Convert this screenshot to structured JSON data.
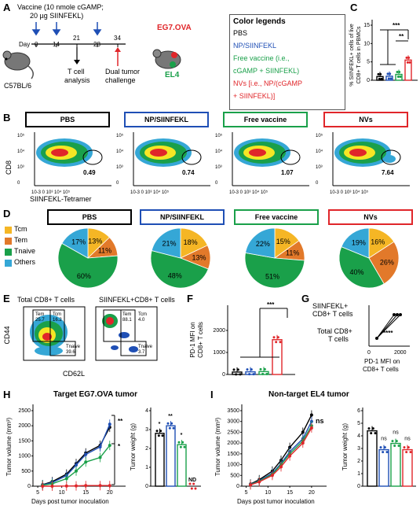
{
  "panelA": {
    "letter": "A",
    "vaccine_line1": "Vaccine (10 nmole cGAMP;",
    "vaccine_line2": "20 µg SIINFEKL)",
    "mouse": "C57BL/6",
    "day_label": "Day",
    "days": [
      "0",
      "14",
      "21",
      "28",
      "34"
    ],
    "tcell1": "T cell",
    "tcell2": "analysis",
    "dual1": "Dual tumor",
    "dual2": "challenge",
    "tumor1": "EG7.OVA",
    "tumor2": "EL4",
    "legend_title": "Color legends",
    "legend": [
      {
        "text": "PBS",
        "color": "#000000"
      },
      {
        "text": "NP/SIINFEKL",
        "color": "#1f4fb5"
      },
      {
        "text": "Free vaccine (i.e.,",
        "color": "#1aa04a"
      },
      {
        "text": "cGAMP + SIINFEKL)",
        "color": "#1aa04a"
      },
      {
        "text": "NVs [i.e., NP/(cGAMP",
        "color": "#e0262a"
      },
      {
        "text": "+ SIINFEKL)]",
        "color": "#e0262a"
      }
    ]
  },
  "panelC": {
    "letter": "C",
    "ylabel1": "% SIINFEKL+ cells of live",
    "ylabel2": "CD8+ T cells in PBMCs",
    "yticks": [
      "0",
      "5",
      "10",
      "15"
    ],
    "sig1": "***",
    "sig2": "**"
  },
  "panelB": {
    "letter": "B",
    "groups": [
      {
        "name": "PBS",
        "color": "#000000",
        "pct": "0.49"
      },
      {
        "name": "NP/SIINFEKL",
        "color": "#1f4fb5",
        "pct": "0.74"
      },
      {
        "name": "Free vaccine",
        "color": "#1aa04a",
        "pct": "1.07"
      },
      {
        "name": "NVs",
        "color": "#e0262a",
        "pct": "7.64"
      }
    ],
    "ylabel": "CD8",
    "xlabel": "SIINFEKL-Tetramer",
    "xticks": "10-3 0 10³ 10⁴ 10⁵",
    "yticks": [
      "10⁵",
      "10⁴",
      "10³",
      "0"
    ]
  },
  "panelD": {
    "letter": "D",
    "legend": [
      {
        "name": "Tcm",
        "color": "#f5b625"
      },
      {
        "name": "Tem",
        "color": "#e2792a"
      },
      {
        "name": "Tnaive",
        "color": "#1aa04a"
      },
      {
        "name": "Others",
        "color": "#35a7d6"
      }
    ],
    "pies": [
      {
        "title": "PBS",
        "border": "#000000",
        "values": [
          13,
          11,
          60,
          17
        ],
        "labels": [
          "13%",
          "11%",
          "60%",
          "17%"
        ]
      },
      {
        "title": "NP/SIINFEKL",
        "border": "#1f4fb5",
        "values": [
          18,
          13,
          48,
          21
        ],
        "labels": [
          "18%",
          "13%",
          "48%",
          "21%"
        ]
      },
      {
        "title": "Free vaccine",
        "border": "#1aa04a",
        "values": [
          15,
          11,
          51,
          22
        ],
        "labels": [
          "15%",
          "11%",
          "51%",
          "22%"
        ]
      },
      {
        "title": "NVs",
        "border": "#e0262a",
        "values": [
          16,
          26,
          40,
          19
        ],
        "labels": [
          "16%",
          "26%",
          "40%",
          "19%"
        ]
      }
    ]
  },
  "panelE": {
    "letter": "E",
    "title1": "Total CD8+ T cells",
    "title2": "SIINFEKL+CD8+ T cells",
    "ylabel": "CD44",
    "xlabel": "CD62L",
    "q1": {
      "tem": "Tem",
      "tem_v": "25.7",
      "tcm": "Tcm",
      "tcm_v": "16.2",
      "tn": "Tnaive",
      "tn_v": "39.6"
    },
    "q2": {
      "tem": "Tem",
      "tem_v": "88.1",
      "tcm": "Tcm",
      "tcm_v": "4.0",
      "tn": "Tnaive",
      "tn_v": "3.7"
    }
  },
  "panelF": {
    "letter": "F",
    "ylabel1": "PD-1 MFI on",
    "ylabel2": "CD8+ T cells",
    "yticks": [
      "0",
      "1000",
      "2000"
    ],
    "sig": "***"
  },
  "panelG": {
    "letter": "G",
    "label1a": "SIINFEKL+",
    "label1b": "CD8+ T cells",
    "label2a": "Total CD8+",
    "label2b": "T cells",
    "sig": "****",
    "xticks": [
      "0",
      "2000"
    ],
    "xlabel1": "PD-1 MFI on",
    "xlabel2": "CD8+ T cells"
  },
  "panelH": {
    "letter": "H",
    "title": "Target EG7.OVA tumor",
    "ylabel": "Tumor volume (mm³)",
    "xlabel": "Days post tumor inoculation",
    "xticks": [
      "5",
      "10",
      "15",
      "20"
    ],
    "yticks": [
      "0",
      "500",
      "1000",
      "1500",
      "2000",
      "2500"
    ],
    "sig_a": "**",
    "sig_b": "*",
    "bar_ylabel": "Tumor weight (g)",
    "bar_yticks": [
      "0",
      "1",
      "2",
      "3",
      "4"
    ],
    "bar_sigs": [
      "*",
      "**",
      "*",
      "ND"
    ]
  },
  "panelI": {
    "letter": "I",
    "title": "Non-target EL4 tumor",
    "ylabel": "Tumor volume (mm³)",
    "xlabel": "Days post tumor inoculation",
    "xticks": [
      "5",
      "10",
      "15",
      "20"
    ],
    "yticks": [
      "0",
      "500",
      "1000",
      "1500",
      "2000",
      "2500",
      "3000",
      "3500"
    ],
    "sig": "ns",
    "bar_ylabel": "Tumor weight (g)",
    "bar_yticks": [
      "0",
      "1",
      "2",
      "3",
      "4",
      "5",
      "6"
    ],
    "bar_sigs": [
      "ns",
      "ns",
      "ns"
    ]
  },
  "colors": {
    "pbs": "#000000",
    "np": "#1f4fb5",
    "free": "#1aa04a",
    "nv": "#e0262a"
  },
  "chart_data": [
    {
      "type": "bar",
      "panel": "C",
      "categories": [
        "PBS",
        "NP/SIINFEKL",
        "Free vaccine",
        "NVs"
      ],
      "values": [
        1.0,
        1.1,
        1.6,
        5.5
      ],
      "ylabel": "% SIINFEKL+ cells of live CD8+ T cells in PBMCs",
      "ylim": [
        0,
        15
      ]
    },
    {
      "type": "bar",
      "panel": "F",
      "categories": [
        "PBS",
        "NP/SIINFEKL",
        "Free vaccine",
        "NVs"
      ],
      "values": [
        110,
        120,
        130,
        1580
      ],
      "ylabel": "PD-1 MFI on CD8+ T cells",
      "ylim": [
        0,
        2500
      ]
    },
    {
      "type": "line",
      "panel": "H",
      "title": "Target EG7.OVA tumor",
      "x": [
        6,
        8,
        11,
        13,
        15,
        18,
        20
      ],
      "series": [
        {
          "name": "PBS",
          "values": [
            50,
            150,
            400,
            750,
            1100,
            1350,
            1950
          ]
        },
        {
          "name": "NP/SIINFEKL",
          "values": [
            40,
            120,
            350,
            700,
            1050,
            1300,
            2050
          ]
        },
        {
          "name": "Free vaccine",
          "values": [
            30,
            80,
            250,
            500,
            800,
            950,
            1350
          ]
        },
        {
          "name": "NVs",
          "values": [
            0,
            0,
            5,
            10,
            20,
            20,
            20
          ]
        }
      ],
      "xlabel": "Days post tumor inoculation",
      "ylabel": "Tumor volume (mm³)",
      "ylim": [
        0,
        2500
      ]
    },
    {
      "type": "bar",
      "panel": "H",
      "categories": [
        "PBS",
        "NP/SIINFEKL",
        "Free vaccine",
        "NVs"
      ],
      "values": [
        2.8,
        3.2,
        2.2,
        0
      ],
      "ylabel": "Tumor weight (g)",
      "ylim": [
        0,
        4
      ]
    },
    {
      "type": "line",
      "panel": "I",
      "title": "Non-target EL4 tumor",
      "x": [
        6,
        8,
        11,
        13,
        15,
        18,
        20
      ],
      "series": [
        {
          "name": "PBS",
          "values": [
            100,
            300,
            700,
            1200,
            1800,
            2500,
            3300
          ]
        },
        {
          "name": "NP/SIINFEKL",
          "values": [
            80,
            250,
            600,
            1050,
            1600,
            2200,
            3000
          ]
        },
        {
          "name": "Free vaccine",
          "values": [
            70,
            230,
            550,
            1000,
            1500,
            2100,
            2800
          ]
        },
        {
          "name": "NVs",
          "values": [
            60,
            200,
            500,
            900,
            1400,
            2000,
            2700
          ]
        }
      ],
      "xlabel": "Days post tumor inoculation",
      "ylabel": "Tumor volume (mm³)",
      "ylim": [
        0,
        3500
      ]
    },
    {
      "type": "bar",
      "panel": "I",
      "categories": [
        "PBS",
        "NP/SIINFEKL",
        "Free vaccine",
        "NVs"
      ],
      "values": [
        4.4,
        2.9,
        3.4,
        2.9
      ],
      "ylabel": "Tumor weight (g)",
      "ylim": [
        0,
        6
      ]
    }
  ]
}
